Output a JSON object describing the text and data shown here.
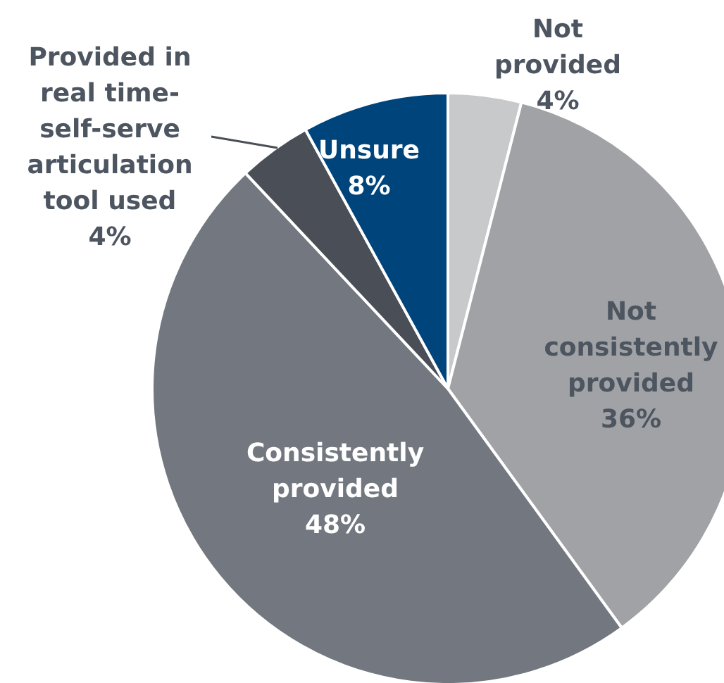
{
  "chart_data": {
    "type": "pie",
    "categories": [
      "Not provided",
      "Not consistently provided",
      "Consistently provided",
      "Provided in real time-self-serve articulation tool used",
      "Unsure"
    ],
    "values": [
      4,
      36,
      48,
      4,
      8
    ],
    "colors": [
      "#c8c9cb",
      "#a0a2a5",
      "#737880",
      "#4a4f57",
      "#00447c"
    ],
    "value_labels": [
      "4%",
      "36%",
      "48%",
      "4%",
      "8%"
    ],
    "legend": false
  }
}
